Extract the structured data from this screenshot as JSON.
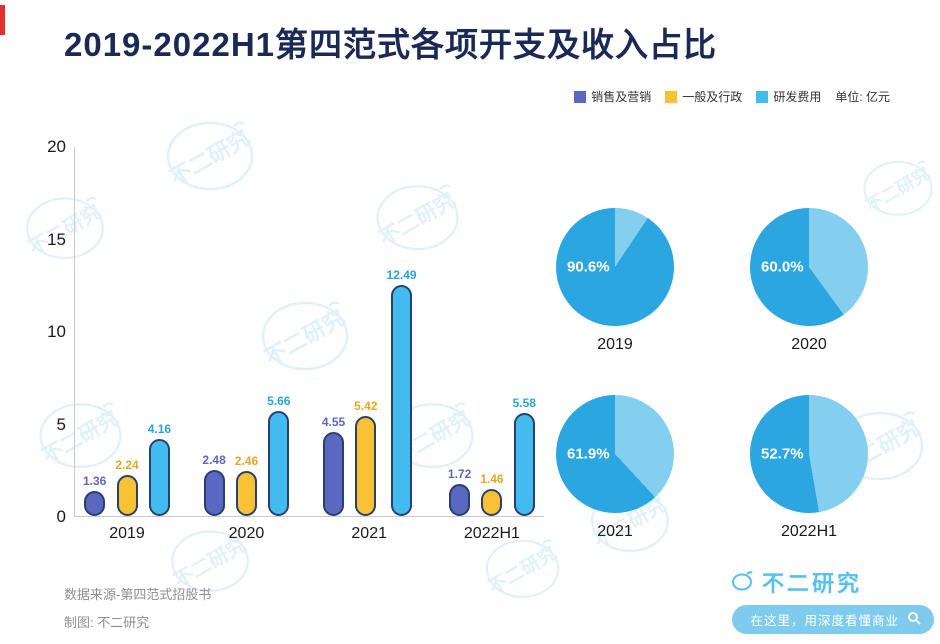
{
  "header": {
    "title": "2019-2022H1第四范式各项开支及收入占比"
  },
  "colors": {
    "title": "#1b2a55",
    "brand": "#55c1ee",
    "pill_bg": "#7ecbee",
    "watermark": "#6fbde4"
  },
  "legend": [
    {
      "label": "销售及营销",
      "color": "#5a68c2"
    },
    {
      "label": "一般及行政",
      "color": "#f9c134"
    },
    {
      "label": "研发费用",
      "color": "#44bbee"
    }
  ],
  "unit_label": "单位: 亿元",
  "chart_data": [
    {
      "type": "bar",
      "title": "2019-2022H1第四范式各项开支",
      "categories": [
        "2019",
        "2020",
        "2021",
        "2022H1"
      ],
      "series": [
        {
          "name": "销售及营销",
          "color": "#5a68c2",
          "label_color": "#5a68c2",
          "values": [
            1.36,
            2.48,
            4.55,
            1.72
          ]
        },
        {
          "name": "一般及行政",
          "color": "#f9c134",
          "label_color": "#e8a623",
          "values": [
            2.24,
            2.46,
            5.42,
            1.46
          ]
        },
        {
          "name": "研发费用",
          "color": "#44bbee",
          "label_color": "#2aa4de",
          "values": [
            4.16,
            5.66,
            12.49,
            5.58
          ]
        }
      ],
      "ylim": [
        0,
        20
      ],
      "yticks": [
        0,
        5,
        10,
        15,
        20
      ],
      "unit": "亿元",
      "grid": false,
      "legend_position": "top-right"
    },
    {
      "type": "pie",
      "title": "收入占比",
      "colors": {
        "main": "#2ba6e0",
        "light": "#84cff0"
      },
      "pies": [
        {
          "label": "2019",
          "value_pct": 90.6,
          "display": "90.6%"
        },
        {
          "label": "2020",
          "value_pct": 60.0,
          "display": "60.0%"
        },
        {
          "label": "2021",
          "value_pct": 61.9,
          "display": "61.9%"
        },
        {
          "label": "2022H1",
          "value_pct": 52.7,
          "display": "52.7%"
        }
      ]
    }
  ],
  "footer": {
    "source": "数据来源-第四范式招股书",
    "credit": "制图: 不二研究"
  },
  "brand": {
    "name": "不二研究",
    "tagline": "在这里，用深度看懂商业"
  },
  "watermark_text": "不二研究"
}
